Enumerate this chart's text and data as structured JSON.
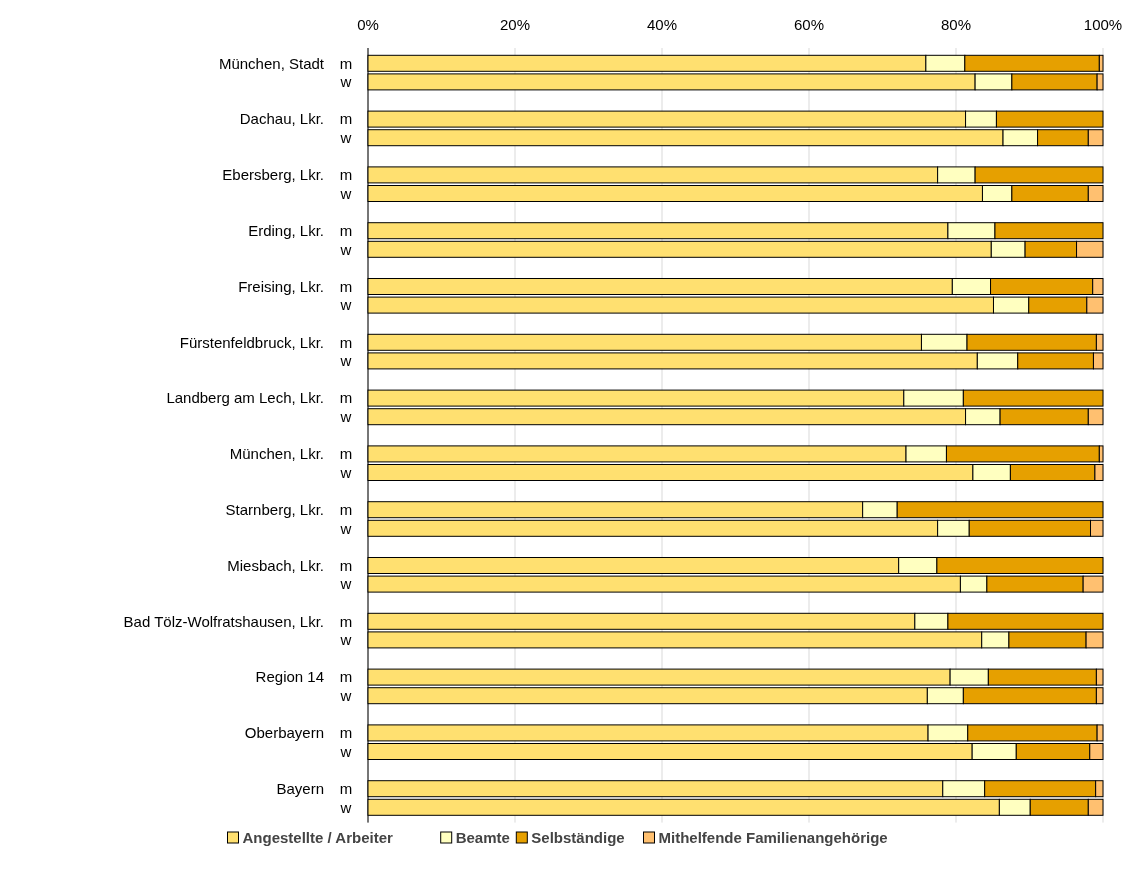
{
  "chart_data": {
    "type": "bar",
    "orientation": "horizontal",
    "stacked": true,
    "categories": [
      "m",
      "w",
      null,
      "m",
      "w",
      null,
      "m",
      "w",
      null,
      "m",
      "w",
      null,
      "m",
      "w",
      null,
      "m",
      "w",
      null,
      "m",
      "w",
      null,
      "m",
      "w",
      null,
      "m",
      "w",
      null,
      "m",
      "w",
      null,
      "m",
      "w",
      null,
      "m",
      "w",
      null,
      "m",
      "w",
      null,
      "m",
      "w"
    ],
    "annotations": [
      "München, Stadt",
      "Dachau, Lkr.",
      "Ebersberg, Lkr.",
      "Erding, Lkr.",
      "Freising, Lkr.",
      "Fürstenfeldbruck, Lkr.",
      "Landberg am Lech, Lkr.",
      "München, Lkr.",
      "Starnberg, Lkr.",
      "Miesbach, Lkr.",
      "Bad Tölz-Wolfratshausen, Lkr.",
      "Region 14",
      "Oberbayern",
      "Bayern"
    ],
    "series": [
      {
        "name": "Angestellte / Arbeiter",
        "color": "#ffe070",
        "values": [
          75.9,
          82.6,
          null,
          81.3,
          86.4,
          null,
          77.5,
          83.6,
          null,
          78.9,
          84.8,
          null,
          79.5,
          85.1,
          null,
          75.3,
          82.9,
          null,
          72.9,
          81.3,
          null,
          73.2,
          82.3,
          null,
          67.3,
          77.5,
          null,
          72.2,
          80.6,
          null,
          74.4,
          83.5,
          null,
          79.2,
          76.1,
          null,
          76.2,
          82.2,
          null,
          78.2,
          85.9
        ]
      },
      {
        "name": "Beamte",
        "color": "#ffffc0",
        "values": [
          5.3,
          5.0,
          null,
          4.2,
          4.7,
          null,
          5.1,
          4.0,
          null,
          6.4,
          4.6,
          null,
          5.2,
          4.8,
          null,
          6.2,
          5.5,
          null,
          8.1,
          4.7,
          null,
          5.5,
          5.1,
          null,
          4.7,
          4.3,
          null,
          5.2,
          3.6,
          null,
          4.5,
          3.7,
          null,
          5.2,
          4.9,
          null,
          5.4,
          6.0,
          null,
          5.7,
          4.2
        ]
      },
      {
        "name": "Selbständige",
        "color": "#e6a000",
        "values": [
          18.3,
          11.6,
          null,
          14.5,
          6.9,
          null,
          17.4,
          10.4,
          null,
          14.7,
          7.0,
          null,
          13.9,
          7.9,
          null,
          17.6,
          10.3,
          null,
          19.0,
          12.0,
          null,
          20.8,
          11.5,
          null,
          28.0,
          16.5,
          null,
          22.6,
          13.1,
          null,
          21.1,
          10.5,
          null,
          14.7,
          18.1,
          null,
          17.6,
          10.0,
          null,
          15.1,
          7.9
        ]
      },
      {
        "name": "Mithelfende Familienangehörige",
        "color": "#ffc070",
        "values": [
          0.5,
          0.8,
          null,
          null,
          2.0,
          null,
          null,
          2.0,
          null,
          null,
          3.6,
          null,
          1.4,
          2.2,
          null,
          0.9,
          1.3,
          null,
          null,
          2.0,
          null,
          0.5,
          1.1,
          null,
          null,
          1.7,
          null,
          null,
          2.7,
          null,
          null,
          2.3,
          null,
          0.9,
          0.9,
          null,
          0.8,
          1.8,
          null,
          1.0,
          2.0
        ]
      }
    ],
    "xlim": [
      0,
      100
    ],
    "xticks": [
      {
        "value": 0,
        "label": "0%"
      },
      {
        "value": 20,
        "label": "20%"
      },
      {
        "value": 40,
        "label": "40%"
      },
      {
        "value": 60,
        "label": "60%"
      },
      {
        "value": 80,
        "label": "80%"
      },
      {
        "value": 100,
        "label": "100%"
      }
    ],
    "grid": "x",
    "legend": "bottom"
  }
}
